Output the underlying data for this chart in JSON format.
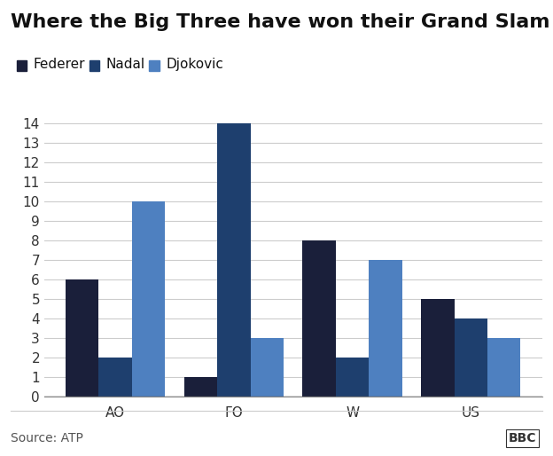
{
  "title": "Where the Big Three have won their Grand Slam titles...",
  "categories": [
    "AO",
    "FO",
    "W",
    "US"
  ],
  "players": [
    "Federer",
    "Nadal",
    "Djokovic"
  ],
  "values": {
    "Federer": [
      6,
      1,
      8,
      5
    ],
    "Nadal": [
      2,
      14,
      2,
      4
    ],
    "Djokovic": [
      10,
      3,
      7,
      3
    ]
  },
  "colors": {
    "Federer": "#1a1f3a",
    "Nadal": "#1e3f6e",
    "Djokovic": "#4e80c0"
  },
  "ylim": [
    0,
    14
  ],
  "yticks": [
    0,
    1,
    2,
    3,
    4,
    5,
    6,
    7,
    8,
    9,
    10,
    11,
    12,
    13,
    14
  ],
  "source_text": "Source: ATP",
  "bbc_text": "BBC",
  "background_color": "#ffffff",
  "title_fontsize": 16,
  "legend_fontsize": 11,
  "tick_fontsize": 11,
  "source_fontsize": 10,
  "bar_width": 0.28
}
